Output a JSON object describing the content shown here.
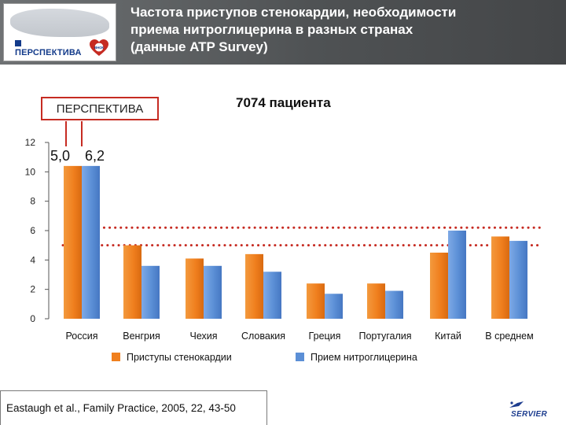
{
  "header": {
    "title_lines": [
      "Частота приступов стенокардии, необходимости",
      "приема нитроглицерина в разных странах",
      "(данные ATP Survey)"
    ],
    "logo_text": "ПЕРСПЕКТИВА",
    "logo_badge": "ВНОК"
  },
  "perspektiva_label": "ПЕРСПЕКТИВА",
  "patients_label": "7074 пациента",
  "chart_data": {
    "type": "bar",
    "categories": [
      "Россия",
      "Венгрия",
      "Чехия",
      "Словакия",
      "Греция",
      "Португалия",
      "Китай",
      "В среднем"
    ],
    "series": [
      {
        "name": "Приступы стенокардии",
        "values": [
          10.4,
          5.0,
          4.1,
          4.4,
          2.4,
          2.4,
          4.5,
          5.6
        ],
        "color": "#f07f1e"
      },
      {
        "name": "Прием нитроглицерина",
        "values": [
          10.4,
          3.6,
          3.6,
          3.2,
          1.7,
          1.9,
          6.0,
          5.3
        ],
        "color": "#5b8fd6"
      }
    ],
    "yticks": [
      "0",
      "2",
      "4",
      "6",
      "8",
      "10",
      "12"
    ],
    "ylim": [
      0,
      12
    ],
    "reference_lines": [
      {
        "value": 6.2,
        "color": "#c62b22"
      },
      {
        "value": 5.0,
        "color": "#c62b22"
      }
    ],
    "annotations": [
      "5,0",
      "6,2"
    ],
    "legend_position": "bottom",
    "grid": false
  },
  "footer": {
    "citation": "Eastaugh et al., Family Practice, 2005, 22, 43-50",
    "logo_text": "SERVIER"
  }
}
